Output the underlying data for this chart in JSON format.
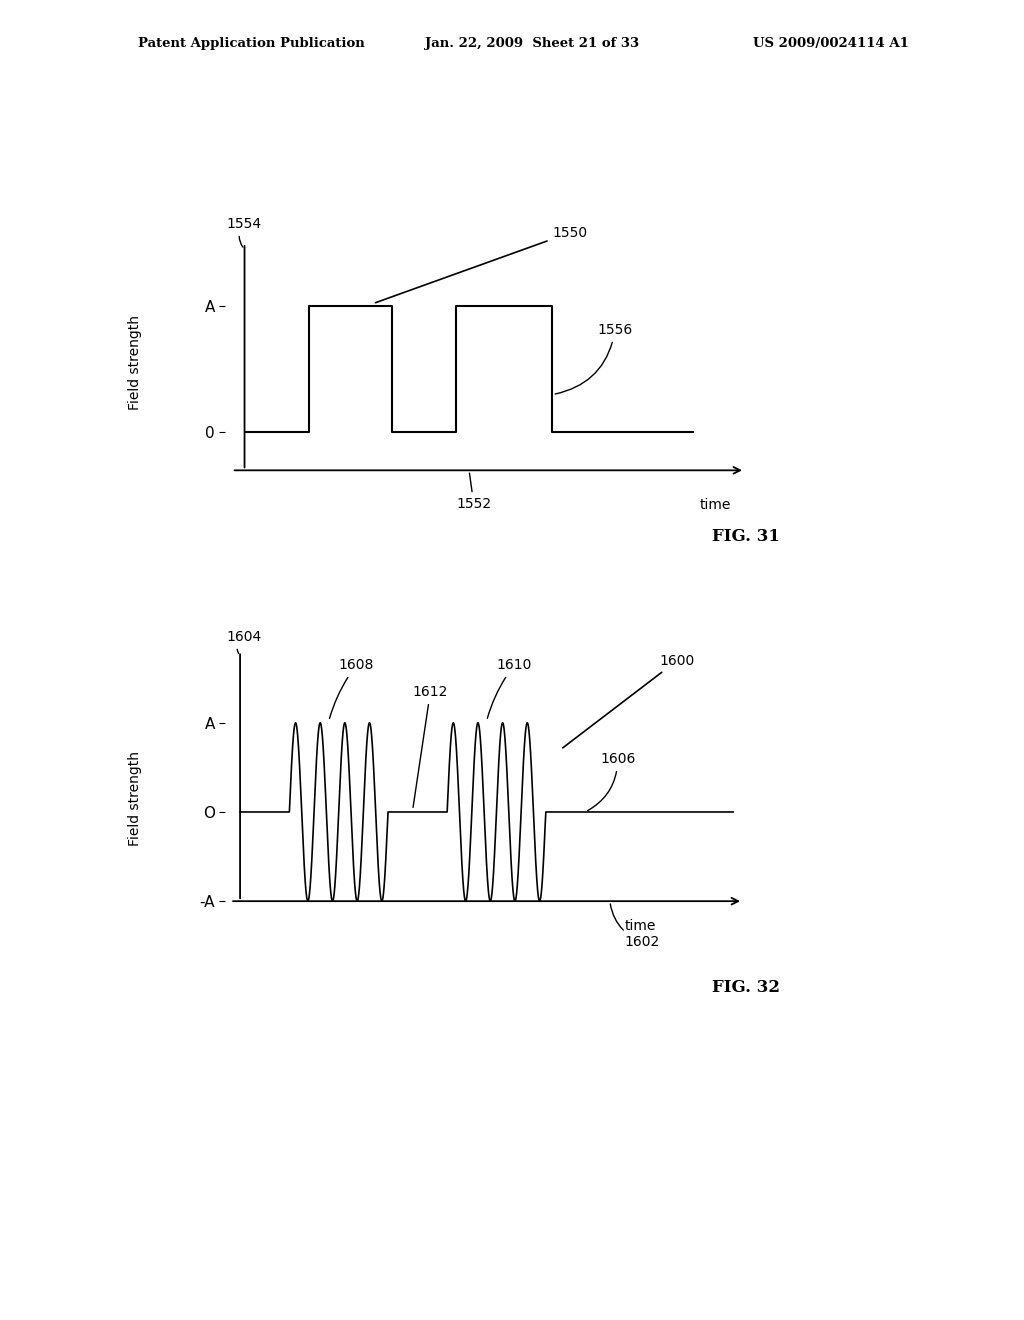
{
  "background_color": "#ffffff",
  "header_text": "Patent Application Publication",
  "header_date": "Jan. 22, 2009  Sheet 21 of 33",
  "header_patent": "US 2009/0024114 A1",
  "fig31": {
    "title": "FIG. 31",
    "ylabel": "Field strength",
    "xlabel": "time",
    "label_1554": "1554",
    "label_1550": "1550",
    "label_1552": "1552",
    "label_1556": "1556"
  },
  "fig32": {
    "title": "FIG. 32",
    "ylabel": "Field strength",
    "xlabel": "time",
    "label_1604": "1604",
    "label_1600": "1600",
    "label_1602": "1602",
    "label_1606": "1606",
    "label_1608": "1608",
    "label_1610": "1610",
    "label_1612": "1612"
  }
}
